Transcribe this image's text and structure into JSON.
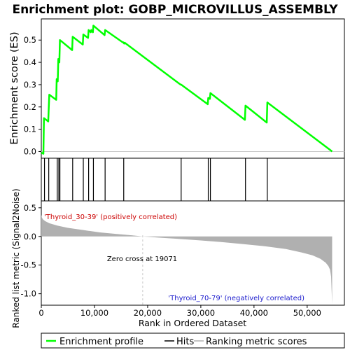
{
  "chart_data": {
    "type": "line",
    "title": "Enrichment plot: GOBP_MICROVILLUS_ASSEMBLY",
    "xlabel": "Rank in Ordered Dataset",
    "x_ticks": [
      "0",
      "10,000",
      "20,000",
      "30,000",
      "40,000",
      "50,000"
    ],
    "x_tick_values": [
      0,
      10000,
      20000,
      30000,
      40000,
      50000
    ],
    "xlim": [
      0,
      57000
    ],
    "n_genes": 54700,
    "colors": {
      "enrichment": "#00ff00",
      "hits": "#000000",
      "metric_fill": "#b0b0b0",
      "zero_cross_line": "#c8c8c8",
      "positive_label": "#cc0000",
      "negative_label": "#1a1acc"
    },
    "es_panel": {
      "ylabel": "Enrichment score (ES)",
      "ylim": [
        -0.03,
        0.595
      ],
      "y_ticks": [
        "0.0",
        "0.1",
        "0.2",
        "0.3",
        "0.4",
        "0.5"
      ],
      "y_tick_values": [
        0.0,
        0.1,
        0.2,
        0.3,
        0.4,
        0.5
      ],
      "series": [
        {
          "name": "Enrichment profile",
          "x": [
            0,
            400,
            500,
            1300,
            1500,
            2800,
            2900,
            3100,
            3200,
            3400,
            3500,
            5800,
            5900,
            7800,
            7900,
            8800,
            8900,
            9300,
            9400,
            9700,
            9800,
            11900,
            12000,
            15300,
            15400,
            15600,
            15700,
            26200,
            26300,
            31300,
            31400,
            31700,
            31800,
            38300,
            38400,
            42400,
            42500,
            54700
          ],
          "y": [
            -0.005,
            -0.01,
            0.15,
            0.135,
            0.255,
            0.232,
            0.325,
            0.315,
            0.415,
            0.4,
            0.5,
            0.455,
            0.515,
            0.48,
            0.525,
            0.51,
            0.545,
            0.535,
            0.545,
            0.535,
            0.565,
            0.522,
            0.545,
            0.49,
            0.49,
            0.484,
            0.488,
            0.3,
            0.3,
            0.212,
            0.24,
            0.236,
            0.262,
            0.142,
            0.206,
            0.13,
            0.22,
            0.0
          ]
        }
      ]
    },
    "hits": [
      600,
      1400,
      3000,
      3300,
      3500,
      5900,
      7900,
      8900,
      9800,
      12000,
      15500,
      26300,
      31400,
      31800,
      38400,
      42500
    ],
    "rank_bar": {
      "segments": [
        {
          "from": 0,
          "to": 2500,
          "color": "#e81010"
        },
        {
          "from": 2500,
          "to": 8000,
          "color": "#f25050"
        },
        {
          "from": 8000,
          "to": 14500,
          "color": "#f88a8a"
        },
        {
          "from": 14500,
          "to": 25000,
          "color": "#fcc0dc"
        },
        {
          "from": 25000,
          "to": 34000,
          "color": "#dcdcfc"
        },
        {
          "from": 34000,
          "to": 38200,
          "color": "#b8b8f8"
        },
        {
          "from": 38200,
          "to": 41800,
          "color": "#8888f4"
        },
        {
          "from": 41800,
          "to": 50000,
          "color": "#5a50ea"
        },
        {
          "from": 50000,
          "to": 54700,
          "color": "#2410c8"
        }
      ]
    },
    "metric_panel": {
      "ylabel": "Ranked list metric (Signal2Noise)",
      "ylim": [
        -1.2,
        0.62
      ],
      "y_ticks": [
        "0.5",
        "0.0",
        "-0.5",
        "-1.0"
      ],
      "y_tick_values": [
        0.5,
        0.0,
        -0.5,
        -1.0
      ],
      "profile_x": [
        0,
        100,
        300,
        700,
        1500,
        3000,
        5000,
        8000,
        11000,
        14000,
        17000,
        19071,
        22000,
        26000,
        30000,
        34000,
        38000,
        42000,
        46000,
        49000,
        51000,
        52500,
        53500,
        54000,
        54300,
        54500,
        54700
      ],
      "profile_y": [
        0.38,
        0.33,
        0.3,
        0.27,
        0.23,
        0.19,
        0.15,
        0.11,
        0.07,
        0.045,
        0.02,
        0.0,
        -0.02,
        -0.045,
        -0.07,
        -0.1,
        -0.135,
        -0.17,
        -0.22,
        -0.28,
        -0.33,
        -0.39,
        -0.46,
        -0.52,
        -0.58,
        -0.7,
        -1.18
      ],
      "zero_cross": 19071,
      "zero_cross_label": "Zero cross at 19071",
      "positive_label": "'Thyroid_30-39' (positively correlated)",
      "negative_label": "'Thyroid_70-79' (negatively correlated)"
    },
    "legend": {
      "position": "bottom",
      "entries": [
        "Enrichment profile",
        "Hits",
        "Ranking metric scores"
      ]
    }
  }
}
